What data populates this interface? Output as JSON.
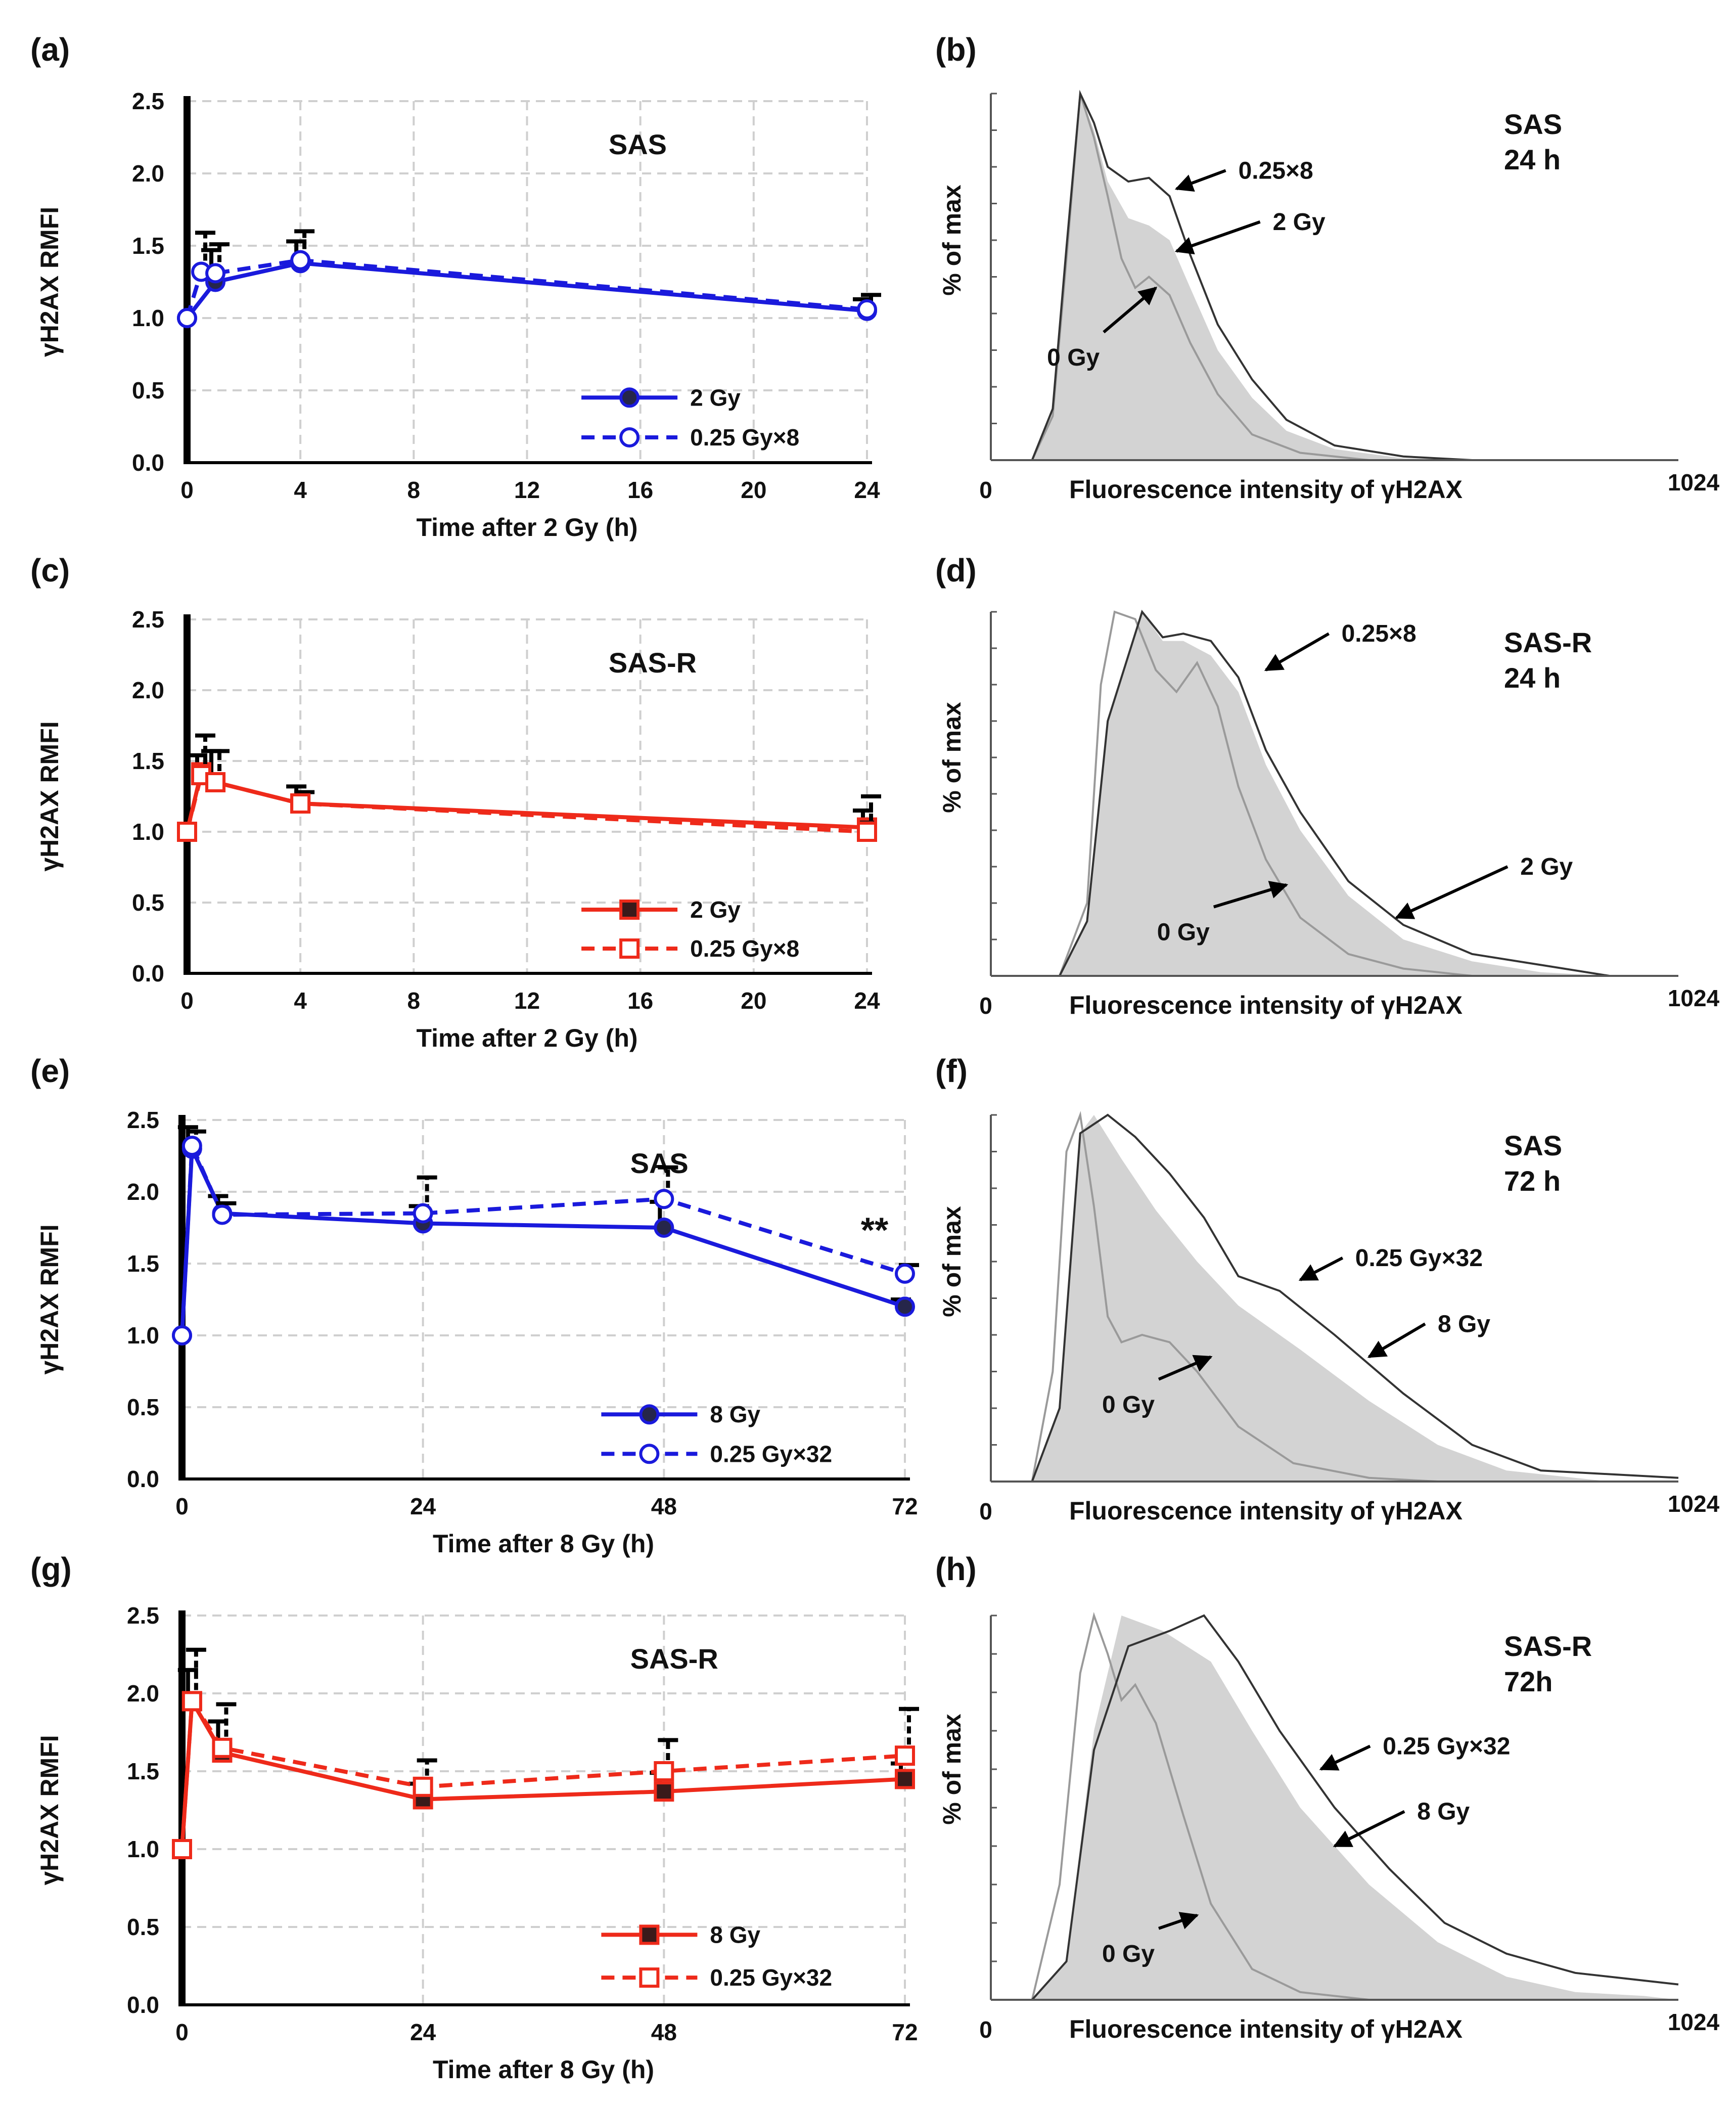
{
  "chart_data": [
    {
      "id": "a",
      "type": "line",
      "panel_label": "(a)",
      "cell_line": "SAS",
      "xlabel": "Time after 2 Gy (h)",
      "ylabel": "γH2AX RMFI",
      "xlim": [
        0,
        24
      ],
      "ylim": [
        0,
        2.5
      ],
      "xticks": [
        "0",
        "4",
        "8",
        "12",
        "16",
        "20",
        "24"
      ],
      "yticks": [
        "0.0",
        "0.5",
        "1.0",
        "1.5",
        "2.0",
        "2.5"
      ],
      "color": "#1a1adc",
      "marker": "circle",
      "series": [
        {
          "name": "2 Gy",
          "style": "solid",
          "x": [
            0,
            1,
            4,
            24
          ],
          "y": [
            1.0,
            1.25,
            1.38,
            1.05
          ],
          "err": [
            0,
            0.22,
            0.15,
            0.08
          ]
        },
        {
          "name": "0.25 Gy×8",
          "style": "dashed",
          "x": [
            0,
            0.5,
            1,
            4,
            24
          ],
          "y": [
            1.0,
            1.32,
            1.31,
            1.4,
            1.06
          ],
          "err": [
            0,
            0.27,
            0.2,
            0.2,
            0.1
          ]
        }
      ],
      "annotations": []
    },
    {
      "id": "c",
      "type": "line",
      "panel_label": "(c)",
      "cell_line": "SAS-R",
      "xlabel": "Time after 2 Gy (h)",
      "ylabel": "γH2AX RMFI",
      "xlim": [
        0,
        24
      ],
      "ylim": [
        0,
        2.5
      ],
      "xticks": [
        "0",
        "4",
        "8",
        "12",
        "16",
        "20",
        "24"
      ],
      "yticks": [
        "0.0",
        "0.5",
        "1.0",
        "1.5",
        "2.0",
        "2.5"
      ],
      "color": "#ee2a1a",
      "marker": "square",
      "series": [
        {
          "name": "2 Gy",
          "style": "solid",
          "x": [
            0,
            0.5,
            1,
            4,
            24
          ],
          "y": [
            1.0,
            1.42,
            1.35,
            1.2,
            1.03
          ],
          "err": [
            0,
            0.12,
            0.22,
            0.12,
            0.12
          ]
        },
        {
          "name": "0.25 Gy×8",
          "style": "dashed",
          "x": [
            0,
            0.5,
            1,
            4,
            24
          ],
          "y": [
            1.0,
            1.4,
            1.35,
            1.2,
            1.0
          ],
          "err": [
            0,
            0.28,
            0.22,
            0.08,
            0.25
          ]
        }
      ],
      "annotations": []
    },
    {
      "id": "e",
      "type": "line",
      "panel_label": "(e)",
      "cell_line": "SAS",
      "xlabel": "Time after 8 Gy (h)",
      "ylabel": "γH2AX RMFI",
      "xlim": [
        0,
        72
      ],
      "ylim": [
        0,
        2.5
      ],
      "xticks": [
        "0",
        "24",
        "48",
        "72"
      ],
      "yticks": [
        "0.0",
        "0.5",
        "1.0",
        "1.5",
        "2.0",
        "2.5"
      ],
      "color": "#1a1adc",
      "marker": "circle",
      "series": [
        {
          "name": "8 Gy",
          "style": "solid",
          "x": [
            0,
            1,
            4,
            24,
            48,
            72
          ],
          "y": [
            1.0,
            2.3,
            1.85,
            1.78,
            1.75,
            1.2
          ],
          "err": [
            0,
            0.15,
            0.12,
            0.12,
            0.18,
            0.05
          ]
        },
        {
          "name": "0.25 Gy×32",
          "style": "dashed",
          "x": [
            0,
            1,
            4,
            24,
            48,
            72
          ],
          "y": [
            1.0,
            2.32,
            1.84,
            1.85,
            1.95,
            1.43
          ],
          "err": [
            0,
            0.1,
            0.08,
            0.25,
            0.22,
            0.06
          ]
        }
      ],
      "annotations": [
        "**"
      ]
    },
    {
      "id": "g",
      "type": "line",
      "panel_label": "(g)",
      "cell_line": "SAS-R",
      "xlabel": "Time after 8 Gy (h)",
      "ylabel": "γH2AX RMFI",
      "xlim": [
        0,
        72
      ],
      "ylim": [
        0,
        2.5
      ],
      "xticks": [
        "0",
        "24",
        "48",
        "72"
      ],
      "yticks": [
        "0.0",
        "0.5",
        "1.0",
        "1.5",
        "2.0",
        "2.5"
      ],
      "color": "#ee2a1a",
      "marker": "square",
      "series": [
        {
          "name": "8 Gy",
          "style": "solid",
          "x": [
            0,
            1,
            4,
            24,
            48,
            72
          ],
          "y": [
            1.0,
            1.95,
            1.62,
            1.32,
            1.37,
            1.45
          ],
          "err": [
            0,
            0.2,
            0.2,
            0.1,
            0.12,
            0.1
          ]
        },
        {
          "name": "0.25 Gy×32",
          "style": "dashed",
          "x": [
            0,
            1,
            4,
            24,
            48,
            72
          ],
          "y": [
            1.0,
            1.95,
            1.65,
            1.4,
            1.5,
            1.6
          ],
          "err": [
            0,
            0.33,
            0.28,
            0.17,
            0.2,
            0.3
          ]
        }
      ],
      "annotations": []
    },
    {
      "id": "b",
      "type": "area",
      "panel_label": "(b)",
      "title_line1": "SAS",
      "title_line2": "24 h",
      "xlabel": "Fluorescence  intensity of γH2AX",
      "ylabel": "% of max",
      "xmin_label": "0",
      "xmax_label": "1024",
      "labels": {
        "dashed": "0.25×8",
        "shaded": "2 Gy",
        "control": "0 Gy"
      }
    },
    {
      "id": "d",
      "type": "area",
      "panel_label": "(d)",
      "title_line1": "SAS-R",
      "title_line2": "24 h",
      "xlabel": "Fluorescence  intensity of γH2AX",
      "ylabel": "% of max",
      "xmin_label": "0",
      "xmax_label": "1024",
      "labels": {
        "dashed": "0.25×8",
        "shaded": "2 Gy",
        "control": "0 Gy"
      }
    },
    {
      "id": "f",
      "type": "area",
      "panel_label": "(f)",
      "title_line1": "SAS",
      "title_line2": "72 h",
      "xlabel": "Fluorescence  intensity of γH2AX",
      "ylabel": "% of max",
      "xmin_label": "0",
      "xmax_label": "1024",
      "labels": {
        "dashed": "0.25 Gy×32",
        "shaded": "8 Gy",
        "control": "0 Gy"
      }
    },
    {
      "id": "h",
      "type": "area",
      "panel_label": "(h)",
      "title_line1": "SAS-R",
      "title_line2": "72h",
      "xlabel": "Fluorescence  intensity of γH2AX",
      "ylabel": "% of max",
      "xmin_label": "0",
      "xmax_label": "1024",
      "labels": {
        "dashed": "0.25 Gy×32",
        "shaded": "8 Gy",
        "control": "0 Gy"
      }
    }
  ]
}
